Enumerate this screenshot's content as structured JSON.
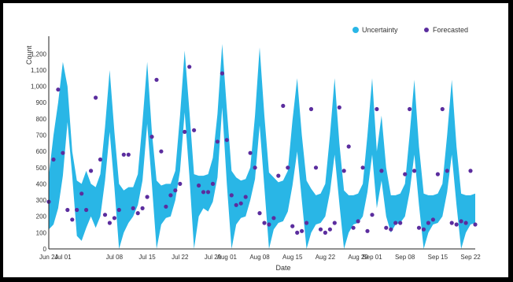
{
  "chart_data": {
    "type": "area",
    "title": "",
    "xlabel": "Date",
    "ylabel": "Count",
    "ylim": [
      0,
      1250
    ],
    "yticks": [
      0,
      100,
      200,
      300,
      400,
      500,
      600,
      700,
      800,
      900,
      "1,000",
      "1,100",
      "1,200"
    ],
    "xticks": [
      "Jun 24",
      "Jul 01",
      "Jul 08",
      "Jul 15",
      "Jul 22",
      "Jul 29",
      "Aug 01",
      "Aug 08",
      "Aug 15",
      "Aug 22",
      "Aug 29",
      "Sep 01",
      "Sep 08",
      "Sep 15",
      "Sep 22"
    ],
    "legend": {
      "position": "top-right",
      "items": [
        "Uncertainty",
        "Forecasted"
      ]
    },
    "colors": {
      "uncertainty": "#29b6e6",
      "forecasted": "#5b2d9e"
    },
    "series": [
      {
        "name": "Uncertainty",
        "x": [
          "Jun 24",
          "Jun 25",
          "Jun 26",
          "Jun 27",
          "Jun 28",
          "Jun 29",
          "Jun 30",
          "Jul 01",
          "Jul 02",
          "Jul 03",
          "Jul 04",
          "Jul 05",
          "Jul 06",
          "Jul 07",
          "Jul 08",
          "Jul 09",
          "Jul 10",
          "Jul 11",
          "Jul 12",
          "Jul 13",
          "Jul 14",
          "Jul 15",
          "Jul 16",
          "Jul 17",
          "Jul 18",
          "Jul 19",
          "Jul 20",
          "Jul 21",
          "Jul 22",
          "Jul 23",
          "Jul 24",
          "Jul 25",
          "Jul 26",
          "Jul 27",
          "Jul 28",
          "Jul 29",
          "Jul 30",
          "Jul 31",
          "Aug 01",
          "Aug 02",
          "Aug 03",
          "Aug 04",
          "Aug 05",
          "Aug 06",
          "Aug 07",
          "Aug 08",
          "Aug 09",
          "Aug 10",
          "Aug 11",
          "Aug 12",
          "Aug 13",
          "Aug 14",
          "Aug 15",
          "Aug 16",
          "Aug 17",
          "Aug 18",
          "Aug 19",
          "Aug 20",
          "Aug 21",
          "Aug 22",
          "Aug 23",
          "Aug 24",
          "Aug 25",
          "Aug 26",
          "Aug 27",
          "Aug 28",
          "Aug 29",
          "Aug 30",
          "Aug 31",
          "Sep 01",
          "Sep 02",
          "Sep 03",
          "Sep 04",
          "Sep 05",
          "Sep 06",
          "Sep 07",
          "Sep 08",
          "Sep 09",
          "Sep 10",
          "Sep 11",
          "Sep 12",
          "Sep 13",
          "Sep 14",
          "Sep 15",
          "Sep 16",
          "Sep 17",
          "Sep 18",
          "Sep 19",
          "Sep 20",
          "Sep 21",
          "Sep 22",
          "Sep 23"
        ],
        "low": [
          120,
          150,
          250,
          450,
          780,
          450,
          80,
          50,
          130,
          200,
          130,
          200,
          420,
          720,
          380,
          0,
          100,
          160,
          200,
          270,
          420,
          770,
          400,
          0,
          150,
          190,
          200,
          300,
          480,
          840,
          450,
          0,
          200,
          250,
          230,
          290,
          440,
          870,
          400,
          0,
          150,
          190,
          200,
          300,
          430,
          760,
          380,
          0,
          120,
          160,
          170,
          230,
          390,
          600,
          300,
          0,
          100,
          150,
          160,
          200,
          350,
          580,
          280,
          0,
          100,
          150,
          160,
          200,
          350,
          580,
          250,
          420,
          200,
          100,
          150,
          160,
          200,
          350,
          580,
          270,
          0,
          100,
          150,
          160,
          200,
          350,
          580,
          270,
          0,
          100,
          150,
          160
        ],
        "high": [
          450,
          700,
          900,
          1150,
          1000,
          600,
          420,
          400,
          480,
          400,
          380,
          460,
          750,
          1100,
          720,
          400,
          360,
          380,
          380,
          460,
          780,
          1150,
          720,
          420,
          390,
          400,
          400,
          480,
          820,
          1220,
          850,
          460,
          450,
          450,
          460,
          560,
          830,
          1260,
          860,
          480,
          440,
          420,
          430,
          500,
          820,
          1240,
          820,
          470,
          440,
          410,
          420,
          480,
          790,
          1050,
          700,
          420,
          370,
          330,
          340,
          400,
          700,
          1050,
          650,
          360,
          330,
          330,
          340,
          400,
          700,
          1050,
          600,
          820,
          500,
          330,
          330,
          340,
          400,
          700,
          1040,
          630,
          340,
          330,
          330,
          340,
          400,
          700,
          1040,
          630,
          340,
          330,
          330,
          340
        ]
      },
      {
        "name": "Forecasted",
        "x": [
          "Jun 24",
          "Jun 25",
          "Jun 26",
          "Jun 27",
          "Jun 28",
          "Jun 29",
          "Jun 30",
          "Jul 01",
          "Jul 02",
          "Jul 03",
          "Jul 04",
          "Jul 05",
          "Jul 06",
          "Jul 07",
          "Jul 08",
          "Jul 09",
          "Jul 10",
          "Jul 11",
          "Jul 12",
          "Jul 13",
          "Jul 14",
          "Jul 15",
          "Jul 16",
          "Jul 17",
          "Jul 18",
          "Jul 19",
          "Jul 20",
          "Jul 21",
          "Jul 22",
          "Jul 23",
          "Jul 24",
          "Jul 25",
          "Jul 26",
          "Jul 27",
          "Jul 28",
          "Jul 29",
          "Jul 30",
          "Jul 31",
          "Aug 01",
          "Aug 02",
          "Aug 03",
          "Aug 04",
          "Aug 05",
          "Aug 06",
          "Aug 07",
          "Aug 08",
          "Aug 09",
          "Aug 10",
          "Aug 11",
          "Aug 12",
          "Aug 13",
          "Aug 14",
          "Aug 15",
          "Aug 16",
          "Aug 17",
          "Aug 18",
          "Aug 19",
          "Aug 20",
          "Aug 21",
          "Aug 22",
          "Aug 23",
          "Aug 24",
          "Aug 25",
          "Aug 26",
          "Aug 27",
          "Aug 28",
          "Aug 29",
          "Aug 30",
          "Aug 31",
          "Sep 01",
          "Sep 02",
          "Sep 03",
          "Sep 04",
          "Sep 05",
          "Sep 06",
          "Sep 07",
          "Sep 08",
          "Sep 09",
          "Sep 10",
          "Sep 11",
          "Sep 12",
          "Sep 13",
          "Sep 14",
          "Sep 15",
          "Sep 16",
          "Sep 17",
          "Sep 18",
          "Sep 19",
          "Sep 20",
          "Sep 21",
          "Sep 22",
          "Sep 23"
        ],
        "values": [
          290,
          550,
          980,
          590,
          240,
          180,
          240,
          340,
          240,
          480,
          930,
          550,
          210,
          160,
          190,
          240,
          580,
          580,
          250,
          220,
          250,
          320,
          690,
          1040,
          600,
          260,
          330,
          360,
          400,
          720,
          1120,
          730,
          390,
          350,
          350,
          400,
          660,
          1080,
          670,
          330,
          270,
          280,
          320,
          590,
          500,
          220,
          160,
          150,
          190,
          450,
          880,
          500,
          140,
          100,
          110,
          160,
          860,
          500,
          120,
          100,
          120,
          160,
          870,
          480,
          630,
          130,
          170,
          500,
          110,
          210,
          860,
          480,
          130,
          120,
          160,
          160,
          460,
          860,
          480,
          130,
          120,
          160,
          180,
          460,
          860,
          480,
          160,
          150,
          170,
          160,
          480,
          150
        ]
      }
    ]
  }
}
